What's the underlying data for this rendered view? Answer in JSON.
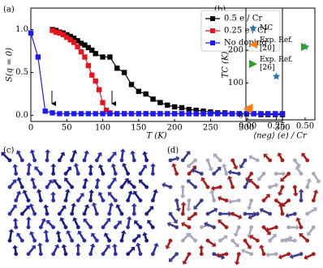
{
  "panel_labels": [
    "(a)",
    "(b)",
    "(c)",
    "(d)"
  ],
  "chart_data": [
    {
      "type": "line",
      "y_label": "S(q = 0)",
      "x_label": "T (K)",
      "xlim": [
        0,
        350
      ],
      "xticks": [
        0,
        50,
        100,
        150,
        200,
        250,
        300,
        350
      ],
      "ylim": [
        -0.07,
        1.25
      ],
      "yticks": [
        {
          "value": 0,
          "label": "0.0"
        },
        {
          "value": 0.5,
          "label": "0.5"
        },
        {
          "value": 1,
          "label": "1.0"
        }
      ],
      "legend": "upper right",
      "series": [
        {
          "name": "0.5 e / Cr",
          "color": "#000000",
          "x": [
            30,
            35,
            40,
            45,
            50,
            55,
            60,
            65,
            70,
            75,
            80,
            85,
            90,
            100,
            110,
            120,
            130,
            140,
            150,
            160,
            170,
            180,
            190,
            200,
            210,
            220,
            230,
            240,
            250,
            260,
            270,
            280,
            290,
            300,
            310,
            320,
            330,
            340,
            350
          ],
          "values": [
            1.0,
            0.99,
            0.97,
            0.96,
            0.94,
            0.92,
            0.9,
            0.87,
            0.84,
            0.82,
            0.79,
            0.76,
            0.72,
            0.68,
            0.68,
            0.55,
            0.5,
            0.36,
            0.28,
            0.25,
            0.19,
            0.15,
            0.12,
            0.1,
            0.09,
            0.07,
            0.06,
            0.05,
            0.04,
            0.03,
            0.03,
            0.02,
            0.02,
            0.02,
            0.02,
            0.01,
            0.01,
            0.01,
            0.01
          ]
        },
        {
          "name": "0.25 e / Cr",
          "color": "#e8141a",
          "x": [
            30,
            35,
            40,
            45,
            50,
            55,
            60,
            65,
            70,
            75,
            80,
            85,
            90,
            95,
            100,
            105,
            110,
            120,
            130,
            140,
            150,
            160,
            170,
            180,
            190,
            200,
            210,
            220,
            230,
            240,
            250,
            260,
            270,
            280,
            290,
            300,
            310,
            320,
            330,
            340,
            350
          ],
          "values": [
            0.99,
            0.97,
            0.96,
            0.94,
            0.91,
            0.88,
            0.85,
            0.8,
            0.74,
            0.68,
            0.58,
            0.47,
            0.4,
            0.3,
            0.15,
            0.06,
            0.03,
            0.02,
            0.02,
            0.02,
            0.02,
            0.02,
            0.02,
            0.02,
            0.02,
            0.02,
            0.02,
            0.02,
            0.02,
            0.02,
            0.02,
            0.02,
            0.02,
            0.02,
            0.02,
            0.02,
            0.02,
            0.02,
            0.02,
            0.02,
            0.02
          ]
        },
        {
          "name": "No doping",
          "color": "#1a1aff",
          "x": [
            0,
            10,
            20,
            30,
            40,
            50,
            60,
            70,
            80,
            90,
            100,
            110,
            120,
            130,
            140,
            150,
            160,
            170,
            180,
            190,
            200,
            210,
            220,
            230,
            240,
            250,
            260,
            270,
            280,
            290,
            300,
            310,
            320,
            330,
            340,
            350
          ],
          "values": [
            0.96,
            0.68,
            0.05,
            0.03,
            0.02,
            0.02,
            0.02,
            0.02,
            0.02,
            0.02,
            0.02,
            0.02,
            0.02,
            0.02,
            0.02,
            0.02,
            0.02,
            0.02,
            0.02,
            0.02,
            0.02,
            0.02,
            0.02,
            0.02,
            0.02,
            0.02,
            0.02,
            0.02,
            0.02,
            0.02,
            0.02,
            0.02,
            0.02,
            0.02,
            0.02,
            0.02
          ]
        }
      ]
    },
    {
      "type": "scatter",
      "y_label": "TC (K)",
      "x_label": "⟨neg⟩ (e) / Cr",
      "xlim": [
        -0.015,
        0.585
      ],
      "xticks": [
        {
          "value": 0,
          "label": "0.00"
        },
        {
          "value": 0.25,
          "label": "0.25"
        },
        {
          "value": 0.5,
          "label": "0.50"
        }
      ],
      "ylim": [
        -12,
        328
      ],
      "yticks": [
        0,
        100,
        200
      ],
      "legend": "upper left",
      "series": [
        {
          "name": "MC",
          "color": "#1f77b4",
          "marker": "star",
          "x": [
            0,
            0.25,
            0.5
          ],
          "values": [
            20,
            120,
            210
          ]
        },
        {
          "name": "Exp. Ref. [20]",
          "color": "#ff7f0e",
          "marker": "triangle-left",
          "x": [
            0,
            0.01
          ],
          "values": [
            20,
            25
          ]
        },
        {
          "name": "Exp. Ref. [26]",
          "color": "#2ca02c",
          "marker": "triangle-right",
          "x": [
            0.5
          ],
          "values": [
            210
          ]
        }
      ]
    }
  ]
}
